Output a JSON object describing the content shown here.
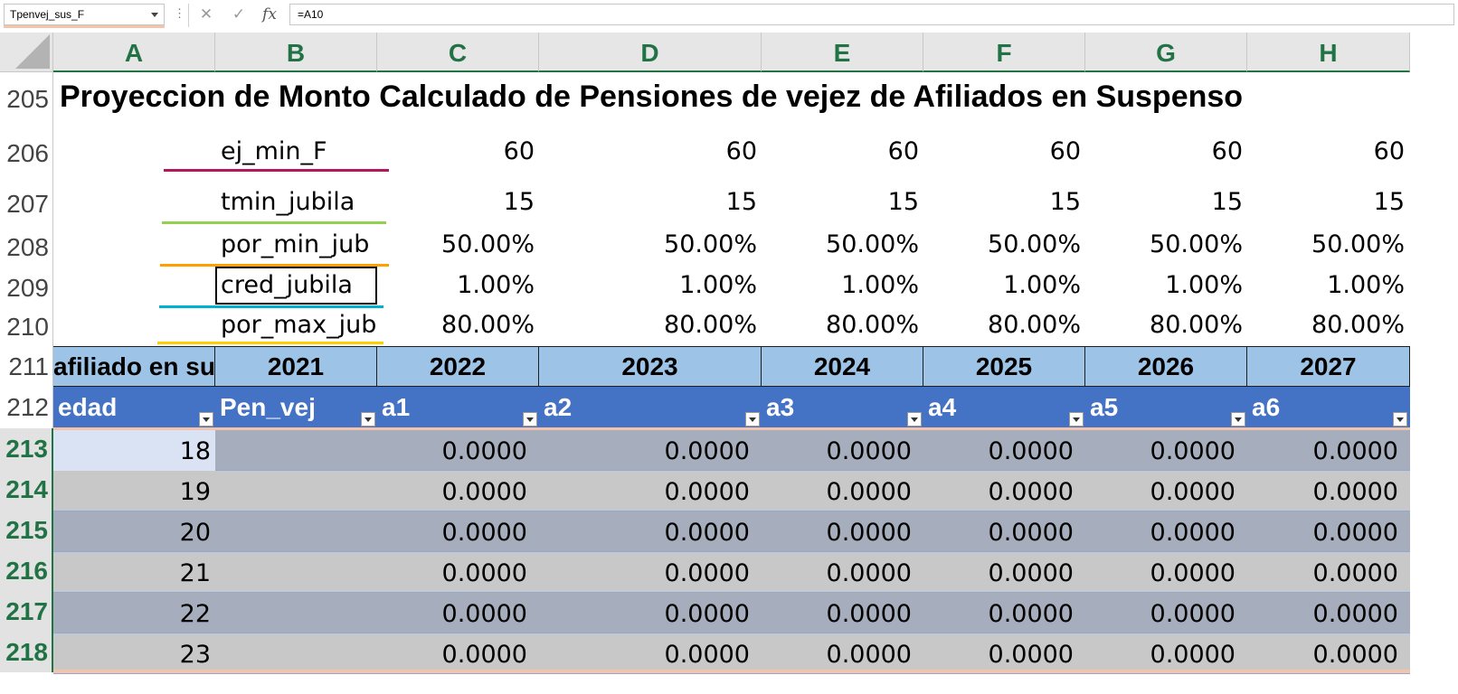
{
  "formula_bar": {
    "name_box": "Tpenvej_sus_F",
    "formula": "=A10",
    "icons": [
      "more-icon",
      "cancel-icon",
      "enter-icon",
      "insert-function-icon"
    ]
  },
  "columns": [
    "A",
    "B",
    "C",
    "D",
    "E",
    "F",
    "G",
    "H"
  ],
  "rows": [
    "205",
    "206",
    "207",
    "208",
    "209",
    "210",
    "211",
    "212",
    "213",
    "214",
    "215",
    "216",
    "217",
    "218"
  ],
  "title": "Proyeccion de Monto Calculado de Pensiones de vejez de Afiliados en Suspenso",
  "params": [
    {
      "label": "ej_min_F",
      "values": [
        "60",
        "60",
        "60",
        "60",
        "60",
        "60"
      ],
      "line_color": "#b5175f"
    },
    {
      "label": "tmin_jubila",
      "values": [
        "15",
        "15",
        "15",
        "15",
        "15",
        "15"
      ],
      "line_color": "#92d050"
    },
    {
      "label": "por_min_jub",
      "values": [
        "50.00%",
        "50.00%",
        "50.00%",
        "50.00%",
        "50.00%",
        "50.00%"
      ],
      "line_color": "#ffa000"
    },
    {
      "label": "cred_jubila",
      "values": [
        "1.00%",
        "1.00%",
        "1.00%",
        "1.00%",
        "1.00%",
        "1.00%"
      ],
      "line_color": "#00b0d0"
    },
    {
      "label": "por_max_jub",
      "values": [
        "80.00%",
        "80.00%",
        "80.00%",
        "80.00%",
        "80.00%",
        "80.00%"
      ],
      "line_color": "#ffd000"
    }
  ],
  "year_row": [
    "afiliado en su",
    "2021",
    "2022",
    "2023",
    "2024",
    "2025",
    "2026",
    "2027"
  ],
  "table_headers": [
    "edad",
    "Pen_vej",
    "a1",
    "a2",
    "a3",
    "a4",
    "a5",
    "a6"
  ],
  "table_rows": [
    {
      "edad": "18",
      "values": [
        "0.0000",
        "0.0000",
        "0.0000",
        "0.0000",
        "0.0000",
        "0.0000"
      ]
    },
    {
      "edad": "19",
      "values": [
        "0.0000",
        "0.0000",
        "0.0000",
        "0.0000",
        "0.0000",
        "0.0000"
      ]
    },
    {
      "edad": "20",
      "values": [
        "0.0000",
        "0.0000",
        "0.0000",
        "0.0000",
        "0.0000",
        "0.0000"
      ]
    },
    {
      "edad": "21",
      "values": [
        "0.0000",
        "0.0000",
        "0.0000",
        "0.0000",
        "0.0000",
        "0.0000"
      ]
    },
    {
      "edad": "22",
      "values": [
        "0.0000",
        "0.0000",
        "0.0000",
        "0.0000",
        "0.0000",
        "0.0000"
      ]
    },
    {
      "edad": "23",
      "values": [
        "0.0000",
        "0.0000",
        "0.0000",
        "0.0000",
        "0.0000",
        "0.0000"
      ]
    }
  ],
  "colors": {
    "excel_green": "#217346",
    "year_row_bg": "#9dc3e6",
    "table_header_bg": "#4472c4",
    "band_dark": "#a6adbd",
    "band_light": "#c8c8c8"
  }
}
